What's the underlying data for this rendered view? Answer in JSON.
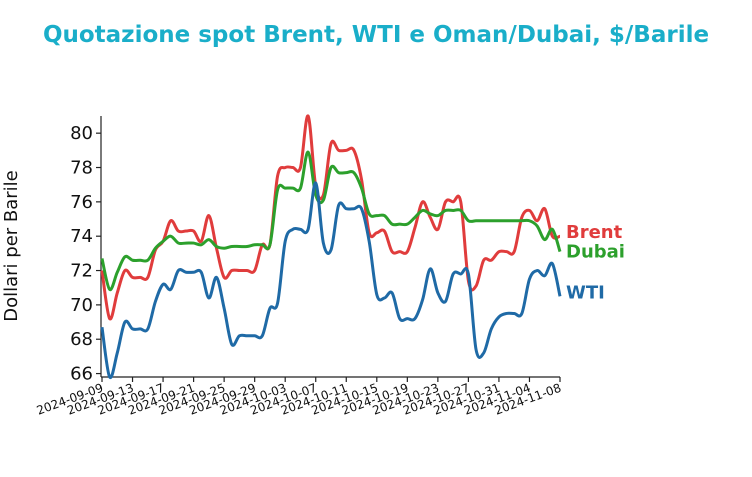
{
  "chart_data": {
    "type": "line",
    "title": "Quotazione spot Brent, WTI e Oman/Dubai, $/Barile",
    "xlabel": "",
    "ylabel": "Dollari per Barile",
    "ylim": [
      65.8,
      81
    ],
    "yticks": [
      66,
      68,
      70,
      72,
      74,
      76,
      78,
      80
    ],
    "xticks": [
      "2024-09-09",
      "2024-09-13",
      "2024-09-17",
      "2024-09-21",
      "2024-09-25",
      "2024-09-29",
      "2024-10-03",
      "2024-10-07",
      "2024-10-11",
      "2024-10-15",
      "2024-10-19",
      "2024-10-23",
      "2024-10-27",
      "2024-10-31",
      "2024-11-04",
      "2024-11-08"
    ],
    "grid": false,
    "x": [
      "2024-09-09",
      "2024-09-10",
      "2024-09-11",
      "2024-09-12",
      "2024-09-13",
      "2024-09-14",
      "2024-09-15",
      "2024-09-16",
      "2024-09-17",
      "2024-09-18",
      "2024-09-19",
      "2024-09-20",
      "2024-09-21",
      "2024-09-22",
      "2024-09-23",
      "2024-09-24",
      "2024-09-25",
      "2024-09-26",
      "2024-09-27",
      "2024-09-28",
      "2024-09-29",
      "2024-09-30",
      "2024-10-01",
      "2024-10-02",
      "2024-10-03",
      "2024-10-04",
      "2024-10-05",
      "2024-10-06",
      "2024-10-07",
      "2024-10-08",
      "2024-10-09",
      "2024-10-10",
      "2024-10-11",
      "2024-10-12",
      "2024-10-13",
      "2024-10-14",
      "2024-10-15",
      "2024-10-16",
      "2024-10-17",
      "2024-10-18",
      "2024-10-19",
      "2024-10-20",
      "2024-10-21",
      "2024-10-22",
      "2024-10-23",
      "2024-10-24",
      "2024-10-25",
      "2024-10-26",
      "2024-10-27",
      "2024-10-28",
      "2024-10-29",
      "2024-10-30",
      "2024-10-31",
      "2024-11-01",
      "2024-11-02",
      "2024-11-03",
      "2024-11-04",
      "2024-11-05",
      "2024-11-06",
      "2024-11-07",
      "2024-11-08"
    ],
    "series": [
      {
        "name": "Brent",
        "color": "#e03c3c",
        "values": [
          72.0,
          69.2,
          70.7,
          72.0,
          71.6,
          71.6,
          71.6,
          73.2,
          73.7,
          74.9,
          74.3,
          74.3,
          74.3,
          73.7,
          75.2,
          73.3,
          71.6,
          72.0,
          72.0,
          72.0,
          72.0,
          73.5,
          73.5,
          77.5,
          78.0,
          78.0,
          78.0,
          81.0,
          76.9,
          76.4,
          79.4,
          79.0,
          79.0,
          79.0,
          77.3,
          74.2,
          74.2,
          74.3,
          73.1,
          73.1,
          73.1,
          74.5,
          76.0,
          75.1,
          74.4,
          76.0,
          76.0,
          76.0,
          71.4,
          71.1,
          72.6,
          72.6,
          73.1,
          73.1,
          73.1,
          75.1,
          75.5,
          74.9,
          75.6,
          74.0,
          74.0
        ]
      },
      {
        "name": "Dubai",
        "color": "#2ca02c",
        "values": [
          72.7,
          70.9,
          71.9,
          72.8,
          72.6,
          72.6,
          72.6,
          73.3,
          73.7,
          74.0,
          73.6,
          73.6,
          73.6,
          73.5,
          73.8,
          73.4,
          73.3,
          73.4,
          73.4,
          73.4,
          73.5,
          73.5,
          73.5,
          76.7,
          76.8,
          76.8,
          76.8,
          78.9,
          76.4,
          76.1,
          78.0,
          77.7,
          77.7,
          77.7,
          76.8,
          75.3,
          75.2,
          75.2,
          74.7,
          74.7,
          74.7,
          75.1,
          75.5,
          75.3,
          75.2,
          75.5,
          75.5,
          75.5,
          74.9,
          74.9,
          74.9,
          74.9,
          74.9,
          74.9,
          74.9,
          74.9,
          74.9,
          74.6,
          73.8,
          74.4,
          73.1
        ]
      },
      {
        "name": "WTI",
        "color": "#1f6aa6",
        "values": [
          68.7,
          65.8,
          67.2,
          69.0,
          68.6,
          68.6,
          68.6,
          70.2,
          71.2,
          70.9,
          72.0,
          71.9,
          71.9,
          71.9,
          70.4,
          71.6,
          69.8,
          67.7,
          68.2,
          68.2,
          68.2,
          68.2,
          69.8,
          70.1,
          73.7,
          74.4,
          74.4,
          74.4,
          77.1,
          73.6,
          73.2,
          75.8,
          75.6,
          75.6,
          75.6,
          73.7,
          70.6,
          70.4,
          70.7,
          69.2,
          69.2,
          69.2,
          70.3,
          72.1,
          70.7,
          70.2,
          71.8,
          71.8,
          71.8,
          67.4,
          67.2,
          68.6,
          69.3,
          69.5,
          69.5,
          69.5,
          71.5,
          72.0,
          71.7,
          72.4,
          70.5
        ]
      }
    ],
    "series_labels": [
      {
        "name": "Brent",
        "text": "Brent"
      },
      {
        "name": "Dubai",
        "text": "Dubai"
      },
      {
        "name": "WTI",
        "text": "WTI"
      }
    ]
  }
}
